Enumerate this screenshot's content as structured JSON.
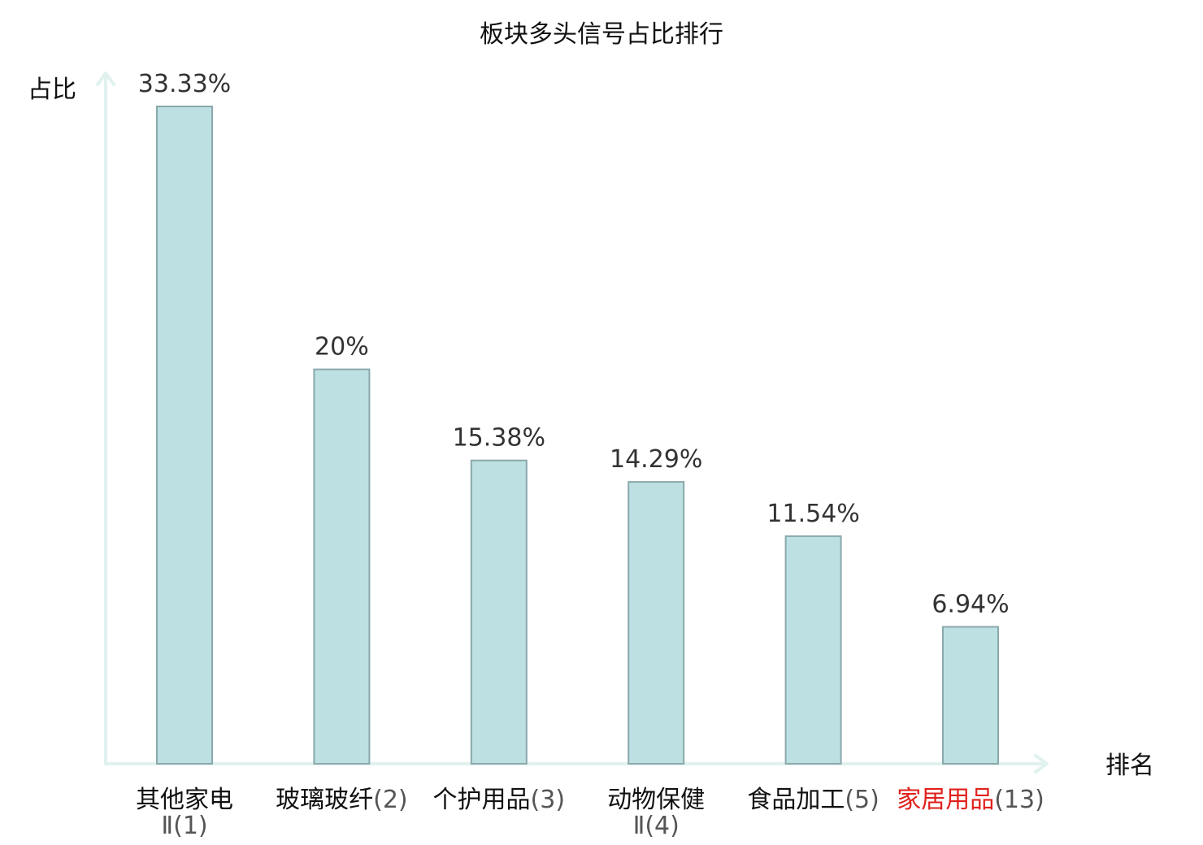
{
  "chart_data": {
    "type": "bar",
    "title": "板块多头信号占比排行",
    "ylabel": "占比",
    "xlabel": "排名",
    "ylim": [
      0,
      35
    ],
    "grid": false,
    "categories": [
      {
        "lines": [
          {
            "name": "其他家电",
            "rank": ""
          },
          {
            "name": "",
            "rank": "Ⅱ(1)"
          }
        ],
        "highlight": false
      },
      {
        "lines": [
          {
            "name": "玻璃玻纤",
            "rank": "(2)"
          }
        ],
        "highlight": false
      },
      {
        "lines": [
          {
            "name": "个护用品",
            "rank": "(3)"
          }
        ],
        "highlight": false
      },
      {
        "lines": [
          {
            "name": "动物保健",
            "rank": ""
          },
          {
            "name": "",
            "rank": "Ⅱ(4)"
          }
        ],
        "highlight": false
      },
      {
        "lines": [
          {
            "name": "食品加工",
            "rank": "(5)"
          }
        ],
        "highlight": false
      },
      {
        "lines": [
          {
            "name": "家居用品",
            "rank": "(13)"
          }
        ],
        "highlight": true
      }
    ],
    "values": [
      33.33,
      20,
      15.38,
      14.29,
      11.54,
      6.94
    ],
    "value_labels": [
      "33.33%",
      "20%",
      "15.38%",
      "14.29%",
      "11.54%",
      "6.94%"
    ],
    "colors": {
      "bar_fill": "#bde0e3",
      "bar_stroke": "#8aa9ac",
      "axis": "#e0f2ef",
      "highlight_text": "#e0201b"
    }
  }
}
